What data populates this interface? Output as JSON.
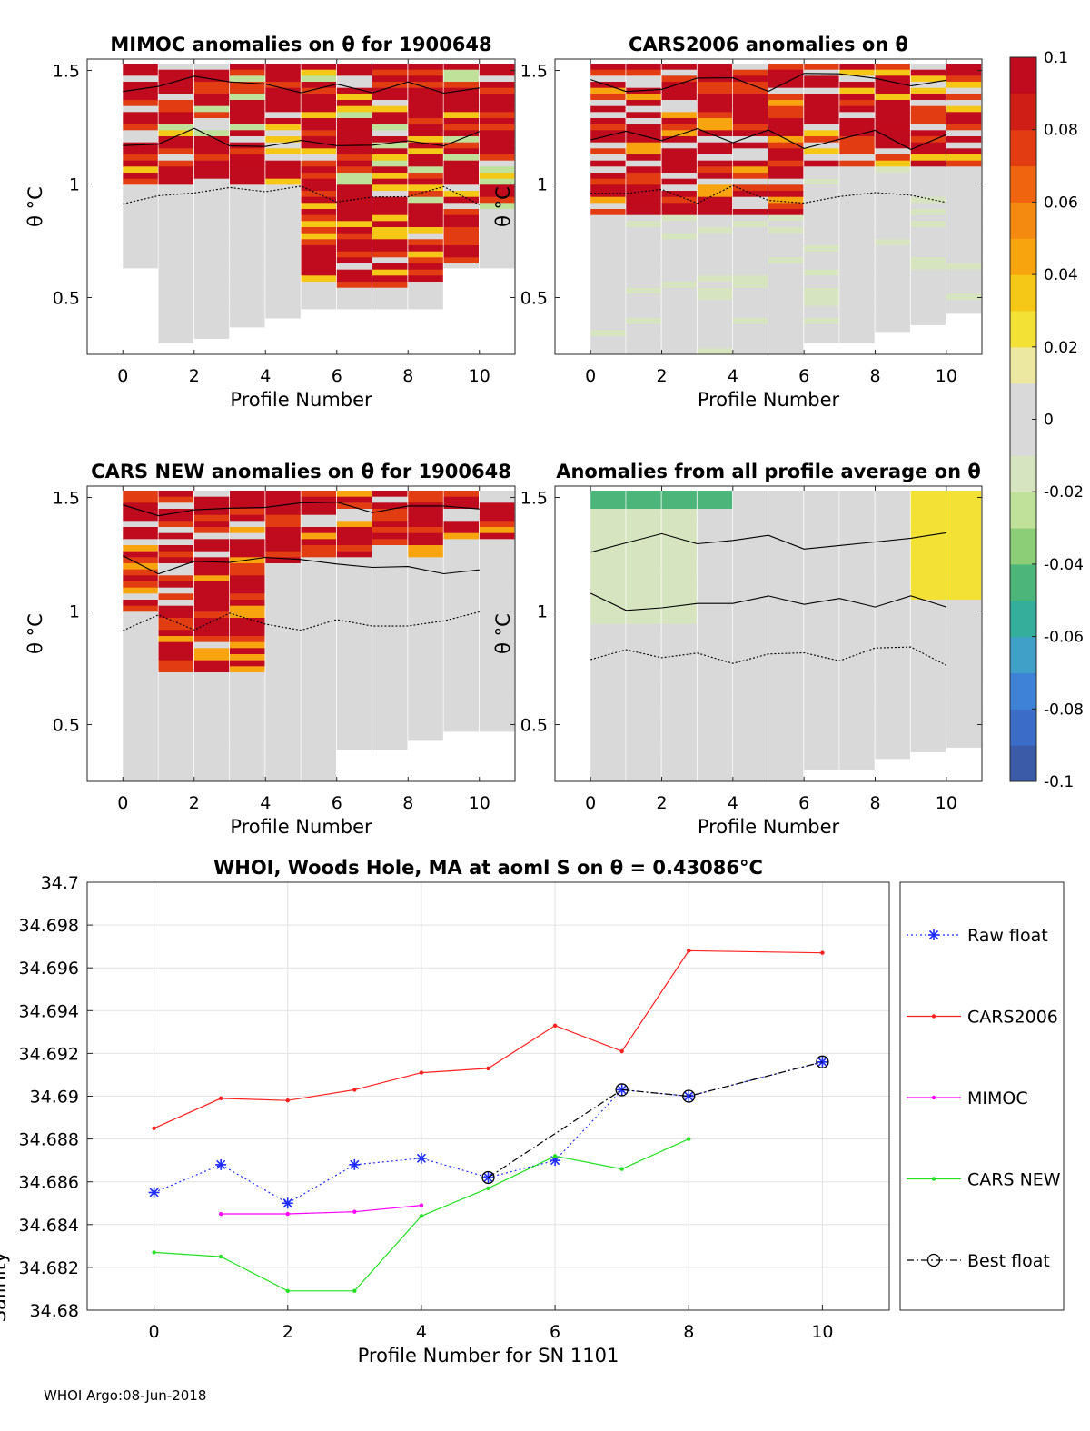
{
  "footer": "WHOI Argo:08-Jun-2018",
  "colors": {
    "raw_float": "#1f2cff",
    "cars2006": "#ff2020",
    "mimoc": "#ff00ff",
    "cars_new": "#22e022",
    "best_float": "#000000",
    "grid": "#e2e2e2",
    "nan_gray": "#d9d9d9"
  },
  "colorbar": {
    "min": -0.1,
    "max": 0.1,
    "tick_labels": [
      "0.1",
      "0.08",
      "0.06",
      "0.04",
      "0.02",
      "0",
      "-0.02",
      "-0.04",
      "-0.06",
      "-0.08",
      "-0.1"
    ],
    "palette": [
      "#3b5ba8",
      "#3a6cc8",
      "#3d82d6",
      "#41a0c8",
      "#36ae9c",
      "#4cb57a",
      "#8ccd78",
      "#bfe19a",
      "#d6e5bf",
      "#d9d9d9",
      "#d9d9d9",
      "#ece8a2",
      "#f3e235",
      "#f5c818",
      "#f7a40e",
      "#f58a10",
      "#f06410",
      "#e23c13",
      "#cf1e16",
      "#c00a1d"
    ]
  },
  "chart_data": [
    {
      "id": "mimoc",
      "type": "heatmap",
      "title": "MIMOC anomalies on θ  for 1900648",
      "xlabel": "Profile Number",
      "ylabel": "θ °C",
      "xlim": [
        -1,
        11
      ],
      "ylim": [
        0.25,
        1.55
      ],
      "xticks": [
        "0",
        "2",
        "4",
        "6",
        "8",
        "10"
      ],
      "yticks": [
        "0.5",
        "1",
        "1.5"
      ],
      "theta_bottom": [
        0.63,
        0.3,
        0.32,
        0.37,
        0.41,
        0.45,
        null,
        null,
        null,
        0.63,
        0.63
      ],
      "pattern": "banded-red"
    },
    {
      "id": "cars2006",
      "type": "heatmap",
      "title": "CARS2006 anomalies on θ",
      "xlabel": "Profile Number",
      "ylabel": "θ °C",
      "xlim": [
        -1,
        11
      ],
      "ylim": [
        0.25,
        1.55
      ],
      "xticks": [
        "0",
        "2",
        "4",
        "6",
        "8",
        "10"
      ],
      "yticks": [
        "0.5",
        "1",
        "1.5"
      ],
      "theta_bottom": [
        0.25,
        0.25,
        0.25,
        0.25,
        0.25,
        0.25,
        0.3,
        0.3,
        0.35,
        0.38,
        0.43
      ],
      "pattern": "banded-top"
    },
    {
      "id": "cars_new",
      "type": "heatmap",
      "title": "CARS NEW anomalies on θ for 1900648",
      "xlabel": "Profile Number",
      "ylabel": "θ °C",
      "xlim": [
        -1,
        11
      ],
      "ylim": [
        0.25,
        1.55
      ],
      "xticks": [
        "0",
        "2",
        "4",
        "6",
        "8",
        "10"
      ],
      "yticks": [
        "0.5",
        "1",
        "1.5"
      ],
      "theta_bottom": [
        0.25,
        0.25,
        0.25,
        0.25,
        0.25,
        0.25,
        0.39,
        0.39,
        0.43,
        0.47,
        0.47
      ],
      "pattern": "banded-upper-left"
    },
    {
      "id": "all_profile",
      "type": "heatmap",
      "title": "Anomalies from all profile average on θ",
      "xlabel": "Profile Number",
      "ylabel": "θ °C",
      "xlim": [
        -1,
        11
      ],
      "ylim": [
        0.25,
        1.55
      ],
      "xticks": [
        "0",
        "2",
        "4",
        "6",
        "8",
        "10"
      ],
      "yticks": [
        "0.5",
        "1",
        "1.5"
      ],
      "theta_bottom": [
        0.25,
        0.25,
        0.25,
        0.25,
        0.25,
        0.25,
        0.3,
        0.3,
        0.35,
        0.38,
        0.4
      ],
      "pattern": "smooth"
    },
    {
      "id": "salinity",
      "type": "line",
      "title": "WHOI, Woods Hole, MA at aoml S on θ = 0.43086°C",
      "xlabel": "Profile Number for SN 1101",
      "ylabel": "Salinity",
      "xlim": [
        -1,
        11
      ],
      "ylim": [
        34.68,
        34.7
      ],
      "xticks": [
        "0",
        "2",
        "4",
        "6",
        "8",
        "10"
      ],
      "yticks": [
        "34.68",
        "34.682",
        "34.684",
        "34.686",
        "34.688",
        "34.69",
        "34.692",
        "34.694",
        "34.696",
        "34.698",
        "34.7"
      ],
      "grid": true,
      "legend_position": "outside-right",
      "series": [
        {
          "name": "Raw float",
          "key": "raw_float",
          "style": "dotted",
          "marker": "asterisk",
          "x": [
            0,
            1,
            2,
            3,
            4,
            5,
            6,
            7,
            8,
            10
          ],
          "values": [
            34.6855,
            34.6868,
            34.685,
            34.6868,
            34.6871,
            34.6862,
            34.687,
            34.6903,
            34.69,
            34.6916
          ]
        },
        {
          "name": "CARS2006",
          "key": "cars2006",
          "style": "solid",
          "marker": "dot",
          "x": [
            0,
            1,
            2,
            3,
            4,
            5,
            6,
            7,
            8,
            10
          ],
          "values": [
            34.6885,
            34.6899,
            34.6898,
            34.6903,
            34.6911,
            34.6913,
            34.6933,
            34.6921,
            34.6968,
            34.6967
          ]
        },
        {
          "name": "MIMOC",
          "key": "mimoc",
          "style": "solid",
          "marker": "dot",
          "x": [
            1,
            2,
            3,
            4
          ],
          "values": [
            34.6845,
            34.6845,
            34.6846,
            34.6849
          ]
        },
        {
          "name": "CARS NEW",
          "key": "cars_new",
          "style": "solid",
          "marker": "dot",
          "x": [
            0,
            1,
            2,
            3,
            4,
            5,
            6,
            7,
            8
          ],
          "values": [
            34.6827,
            34.6825,
            34.6809,
            34.6809,
            34.6844,
            34.6857,
            34.6872,
            34.6866,
            34.688
          ]
        },
        {
          "name": "Best float",
          "key": "best_float",
          "style": "dashdot",
          "marker": "circle",
          "x": [
            5,
            7,
            8,
            10
          ],
          "values": [
            34.6862,
            34.6903,
            34.69,
            34.6916
          ]
        }
      ]
    }
  ]
}
